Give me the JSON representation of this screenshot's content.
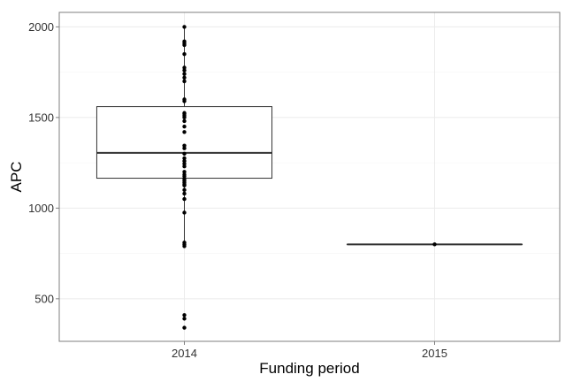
{
  "chart_data": {
    "type": "box",
    "xlabel": "Funding period",
    "ylabel": "APC",
    "categories": [
      "2014",
      "2015"
    ],
    "ylim": [
      265,
      2080
    ],
    "yticks": [
      500,
      1000,
      1500,
      2000
    ],
    "grid": true,
    "boxes": [
      {
        "category": "2014",
        "min": 790,
        "q1": 1165,
        "median": 1305,
        "q3": 1560,
        "max": 2000
      },
      {
        "category": "2015",
        "min": 800,
        "q1": 800,
        "median": 800,
        "q3": 800,
        "max": 800
      }
    ],
    "points": [
      {
        "category": "2014",
        "values": [
          2000,
          1920,
          1910,
          1900,
          1850,
          1775,
          1760,
          1740,
          1720,
          1700,
          1600,
          1590,
          1525,
          1520,
          1510,
          1500,
          1480,
          1450,
          1420,
          1345,
          1330,
          1300,
          1275,
          1260,
          1245,
          1230,
          1200,
          1185,
          1175,
          1160,
          1150,
          1140,
          1130,
          1125,
          1100,
          1080,
          1050,
          975,
          810,
          800,
          790,
          410,
          390,
          340
        ]
      },
      {
        "category": "2015",
        "values": [
          800
        ]
      }
    ]
  }
}
